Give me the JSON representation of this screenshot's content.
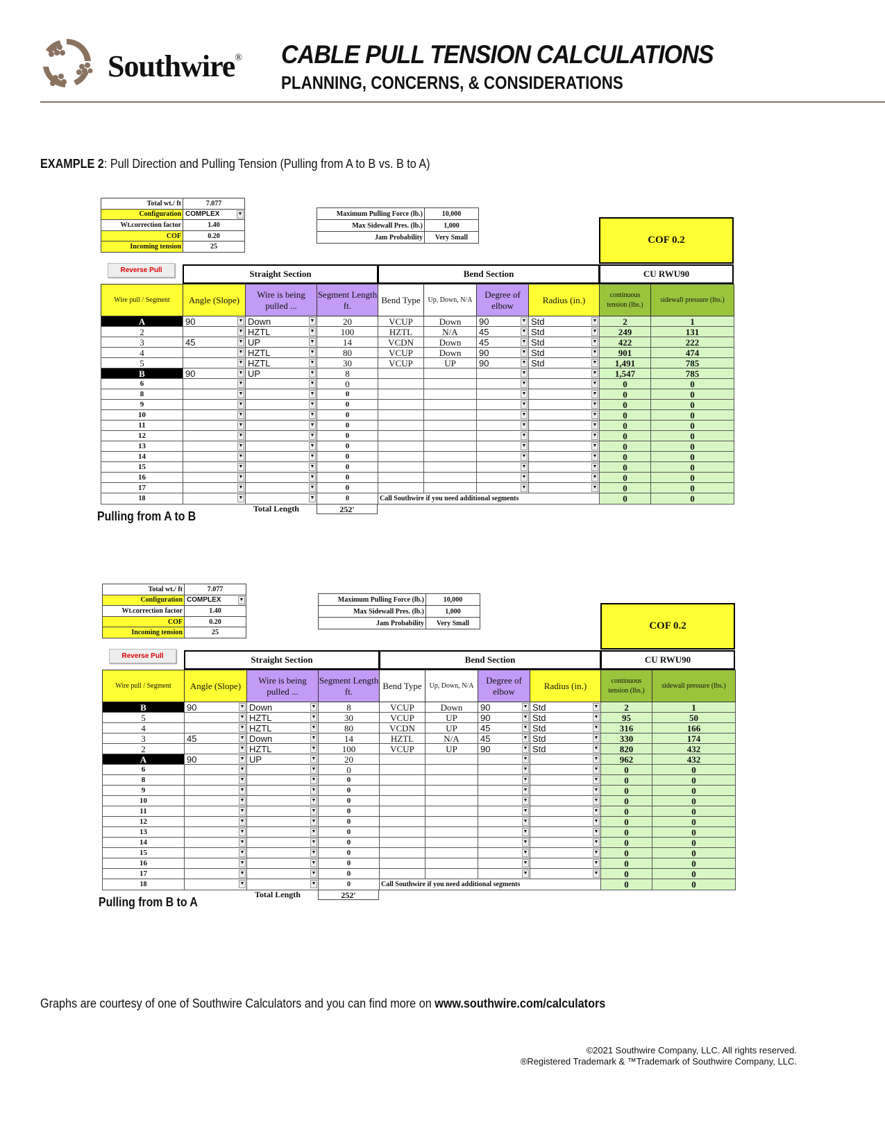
{
  "header": {
    "brand": "Southwire",
    "brand_mark": "®",
    "title": "CABLE PULL TENSION CALCULATIONS",
    "subtitle": "PLANNING, CONCERNS, & CONSIDERATIONS",
    "logo_color": "#8a7260"
  },
  "example": {
    "label": "EXAMPLE 2",
    "text": ": Pull Direction and Pulling Tension (Pulling from A to B vs. B to A)"
  },
  "labels": {
    "total_wt": "Total wt./ ft",
    "configuration": "Configuration",
    "wt_corr": "Wt.correction factor",
    "cof": "COF",
    "incoming": "Incoming tension",
    "max_force": "Maximum Pulling Force (lb.)",
    "max_sidewall": "Max Sidewall Pres. (lb.)",
    "jam": "Jam Probability",
    "reverse": "Reverse Pull",
    "straight": "Straight Section",
    "bend": "Bend Section",
    "cable": "CU RWU90",
    "cols": [
      "Wire pull / Segment",
      "Angle (Slope)",
      "Wire is being pulled ...",
      "Segment Length ft.",
      "Bend Type",
      "Up, Down, N/A",
      "Degree of elbow",
      "Radius (in.)",
      "continuous tension (lbs.)",
      "sidewall pressure    (lbs.)"
    ],
    "note": "Call Southwire if you need additional segments",
    "total_length": "Total  Length"
  },
  "tables": [
    {
      "caption": "Pulling from A to B",
      "total_wt": "7.077",
      "configuration": "COMPLEX",
      "wt_corr": "1.40",
      "cof": "0.20",
      "incoming": "25",
      "max_force": "10,000",
      "max_sidewall": "1,000",
      "jam": "Very Small",
      "cof_box": "COF 0.2",
      "total_length": "252'",
      "rows": [
        [
          "A",
          "90",
          "Down",
          "20",
          "VCUP",
          "Down",
          "90",
          "Std",
          "2",
          "1"
        ],
        [
          "2",
          "",
          "HZTL",
          "100",
          "HZTL",
          "N/A",
          "45",
          "Std",
          "249",
          "131"
        ],
        [
          "3",
          "45",
          "UP",
          "14",
          "VCDN",
          "Down",
          "45",
          "Std",
          "422",
          "222"
        ],
        [
          "4",
          "",
          "HZTL",
          "80",
          "VCUP",
          "Down",
          "90",
          "Std",
          "901",
          "474"
        ],
        [
          "5",
          "",
          "HZTL",
          "30",
          "VCUP",
          "UP",
          "90",
          "Std",
          "1,491",
          "785"
        ],
        [
          "B",
          "90",
          "UP",
          "8",
          "",
          "",
          "",
          "",
          "1,547",
          "785"
        ],
        [
          "6",
          "",
          "",
          "0",
          "",
          "",
          "",
          "",
          "0",
          "0"
        ],
        [
          "8",
          "",
          "",
          "0",
          "",
          "",
          "",
          "",
          "0",
          "0"
        ],
        [
          "9",
          "",
          "",
          "0",
          "",
          "",
          "",
          "",
          "0",
          "0"
        ],
        [
          "10",
          "",
          "",
          "0",
          "",
          "",
          "",
          "",
          "0",
          "0"
        ],
        [
          "11",
          "",
          "",
          "0",
          "",
          "",
          "",
          "",
          "0",
          "0"
        ],
        [
          "12",
          "",
          "",
          "0",
          "",
          "",
          "",
          "",
          "0",
          "0"
        ],
        [
          "13",
          "",
          "",
          "0",
          "",
          "",
          "",
          "",
          "0",
          "0"
        ],
        [
          "14",
          "",
          "",
          "0",
          "",
          "",
          "",
          "",
          "0",
          "0"
        ],
        [
          "15",
          "",
          "",
          "0",
          "",
          "",
          "",
          "",
          "0",
          "0"
        ],
        [
          "16",
          "",
          "",
          "0",
          "",
          "",
          "",
          "",
          "0",
          "0"
        ],
        [
          "17",
          "",
          "",
          "0",
          "",
          "",
          "",
          "",
          "0",
          "0"
        ],
        [
          "18",
          "",
          "",
          "0",
          "",
          "",
          "",
          "",
          "0",
          "0"
        ]
      ]
    },
    {
      "caption": "Pulling from B to A",
      "total_wt": "7.077",
      "configuration": "COMPLEX",
      "wt_corr": "1.40",
      "cof": "0.20",
      "incoming": "25",
      "max_force": "10,000",
      "max_sidewall": "1,000",
      "jam": "Very Small",
      "cof_box": "COF 0.2",
      "total_length": "252'",
      "rows": [
        [
          "B",
          "90",
          "Down",
          "8",
          "VCUP",
          "Down",
          "90",
          "Std",
          "2",
          "1"
        ],
        [
          "5",
          "",
          "HZTL",
          "30",
          "VCUP",
          "UP",
          "90",
          "Std",
          "95",
          "50"
        ],
        [
          "4",
          "",
          "HZTL",
          "80",
          "VCDN",
          "UP",
          "45",
          "Std",
          "316",
          "166"
        ],
        [
          "3",
          "45",
          "Down",
          "14",
          "HZTL",
          "N/A",
          "45",
          "Std",
          "330",
          "174"
        ],
        [
          "2",
          "",
          "HZTL",
          "100",
          "VCUP",
          "UP",
          "90",
          "Std",
          "820",
          "432"
        ],
        [
          "A",
          "90",
          "UP",
          "20",
          "",
          "",
          "",
          "",
          "962",
          "432"
        ],
        [
          "6",
          "",
          "",
          "0",
          "",
          "",
          "",
          "",
          "0",
          "0"
        ],
        [
          "8",
          "",
          "",
          "0",
          "",
          "",
          "",
          "",
          "0",
          "0"
        ],
        [
          "9",
          "",
          "",
          "0",
          "",
          "",
          "",
          "",
          "0",
          "0"
        ],
        [
          "10",
          "",
          "",
          "0",
          "",
          "",
          "",
          "",
          "0",
          "0"
        ],
        [
          "11",
          "",
          "",
          "0",
          "",
          "",
          "",
          "",
          "0",
          "0"
        ],
        [
          "12",
          "",
          "",
          "0",
          "",
          "",
          "",
          "",
          "0",
          "0"
        ],
        [
          "13",
          "",
          "",
          "0",
          "",
          "",
          "",
          "",
          "0",
          "0"
        ],
        [
          "14",
          "",
          "",
          "0",
          "",
          "",
          "",
          "",
          "0",
          "0"
        ],
        [
          "15",
          "",
          "",
          "0",
          "",
          "",
          "",
          "",
          "0",
          "0"
        ],
        [
          "16",
          "",
          "",
          "0",
          "",
          "",
          "",
          "",
          "0",
          "0"
        ],
        [
          "17",
          "",
          "",
          "0",
          "",
          "",
          "",
          "",
          "0",
          "0"
        ],
        [
          "18",
          "",
          "",
          "0",
          "",
          "",
          "",
          "",
          "0",
          "0"
        ]
      ]
    }
  ],
  "footer": {
    "text": "Graphs are courtesy of one of Southwire Calculators and you can find more on ",
    "link": "www.southwire.com/calculators",
    "copyright": "©2021 Southwire Company, LLC. All rights reserved.",
    "trademark": "®Registered Trademark & ™Trademark of Southwire Company, LLC."
  }
}
